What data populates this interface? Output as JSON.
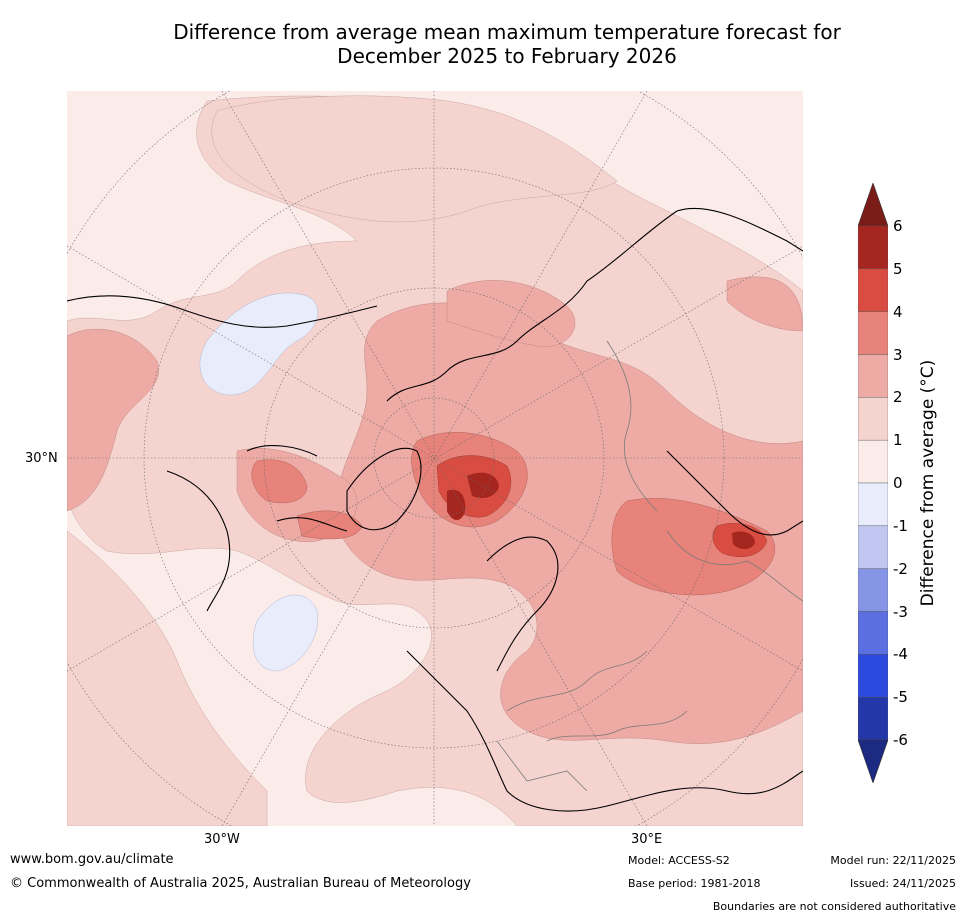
{
  "title_line1": "Difference from average mean maximum temperature forecast for",
  "title_line2": "December 2025 to February 2026",
  "map": {
    "lat_label": "30°N",
    "lon_labels": [
      "30°W",
      "30°E"
    ],
    "legend": {
      "label": "Difference from average (°C)",
      "ticks": [
        "6",
        "5",
        "4",
        "3",
        "2",
        "1",
        "0",
        "-1",
        "-2",
        "-3",
        "-4",
        "-5",
        "-6"
      ],
      "colors": [
        "#7a1d18",
        "#a5261e",
        "#d94c41",
        "#e7837a",
        "#eeaaa4",
        "#f5d4d0",
        "#fbece9",
        "#e8ecfb",
        "#bfc6f0",
        "#8795e7",
        "#5b6fe0",
        "#2d4ade",
        "#2337a8",
        "#1d2a82"
      ]
    }
  },
  "footer": {
    "website": "www.bom.gov.au/climate",
    "copyright": "© Commonwealth of Australia 2025, Australian Bureau of Meteorology",
    "model": "Model: ACCESS-S2",
    "base_period": "Base period: 1981-2018",
    "model_run": "Model run: 22/11/2025",
    "issued": "Issued: 24/11/2025",
    "boundaries": "Boundaries are not considered authoritative"
  }
}
